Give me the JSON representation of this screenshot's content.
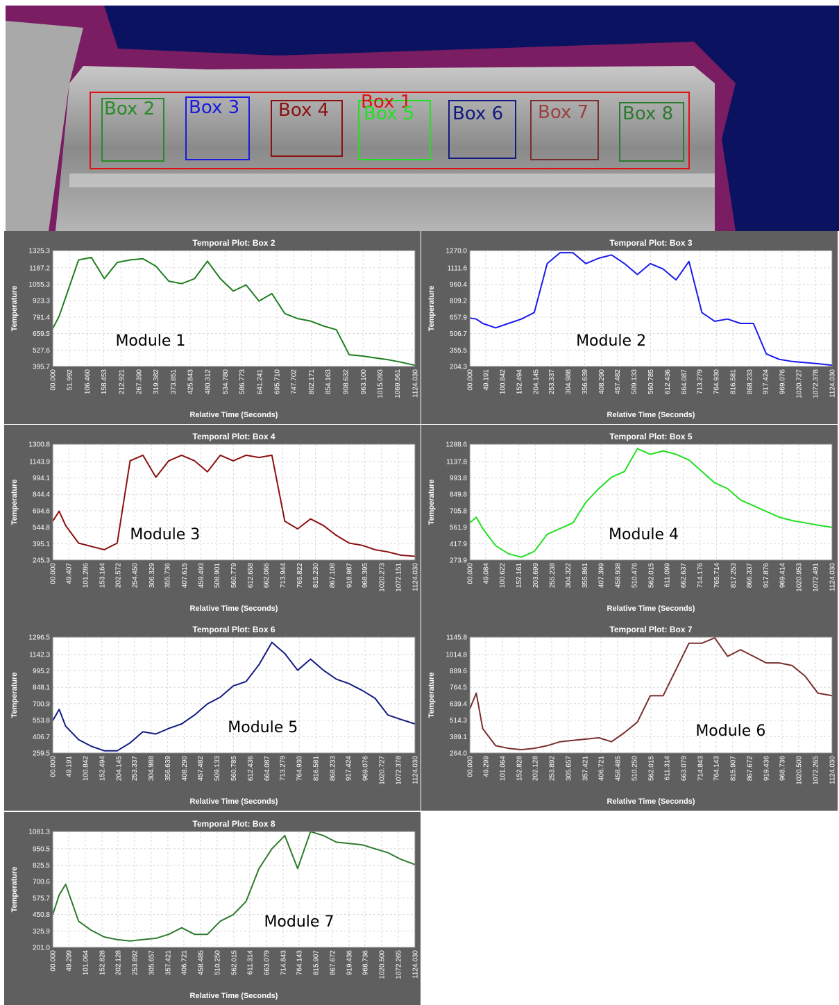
{
  "image": {
    "boxes": [
      {
        "label": "Box 1"
      },
      {
        "label": "Box 2"
      },
      {
        "label": "Box 3"
      },
      {
        "label": "Box 4"
      },
      {
        "label": "Box 5"
      },
      {
        "label": "Box 6"
      },
      {
        "label": "Box 7"
      },
      {
        "label": "Box 8"
      }
    ]
  },
  "chart_data": [
    {
      "type": "line",
      "title": "Temporal Plot: Box 2",
      "xlabel": "Relative Time (Seconds)",
      "ylabel": "Temperature",
      "annotation": "Module 1",
      "color": "#1e7e1e",
      "grid": true,
      "x": [
        0,
        20,
        40,
        80,
        120,
        160,
        200,
        240,
        280,
        320,
        360,
        400,
        440,
        480,
        520,
        560,
        600,
        640,
        680,
        720,
        760,
        800,
        840,
        880,
        920,
        960,
        1000,
        1040,
        1080,
        1124
      ],
      "values": [
        700,
        800,
        950,
        1250,
        1270,
        1100,
        1230,
        1250,
        1260,
        1200,
        1080,
        1060,
        1100,
        1240,
        1100,
        1000,
        1050,
        920,
        980,
        820,
        780,
        760,
        720,
        690,
        490,
        480,
        465,
        450,
        430,
        405
      ],
      "xlim": [
        0,
        1124.03
      ],
      "ylim": [
        395.7,
        1325.3
      ],
      "xticks": [
        {
          "value": 0,
          "label": "00.000"
        },
        51.992,
        {
          "value": 106.46,
          "label": "106.460"
        },
        158.453,
        212.921,
        {
          "value": 267.39,
          "label": "267.390"
        },
        319.382,
        373.851,
        425.843,
        480.312,
        {
          "value": 534.78,
          "label": "534.780"
        },
        586.773,
        641.241,
        {
          "value": 695.71,
          "label": "695.710"
        },
        747.702,
        802.171,
        854.163,
        908.632,
        {
          "value": 963.1,
          "label": "963.100"
        },
        1015.093,
        1069.561,
        {
          "value": 1124.03,
          "label": "1124.030"
        }
      ],
      "yticks": [
        395.7,
        527.6,
        659.5,
        791.4,
        923.3,
        1055.3,
        1187.2,
        1325.3
      ]
    },
    {
      "type": "line",
      "title": "Temporal Plot: Box 3",
      "xlabel": "Relative Time (Seconds)",
      "ylabel": "Temperature",
      "annotation": "Module 2",
      "color": "#1a1aee",
      "grid": true,
      "x": [
        0,
        20,
        40,
        80,
        120,
        160,
        200,
        240,
        280,
        320,
        360,
        400,
        440,
        480,
        520,
        560,
        600,
        640,
        680,
        720,
        760,
        800,
        840,
        880,
        920,
        960,
        1000,
        1040,
        1080,
        1124
      ],
      "values": [
        650,
        640,
        600,
        560,
        600,
        640,
        700,
        1150,
        1250,
        1250,
        1150,
        1200,
        1230,
        1150,
        1050,
        1150,
        1100,
        1000,
        1170,
        700,
        620,
        640,
        600,
        600,
        320,
        270,
        250,
        240,
        230,
        215
      ],
      "xlim": [
        0,
        1124.03
      ],
      "ylim": [
        204.3,
        1270.0
      ],
      "xticks": [
        {
          "value": 0,
          "label": "00.000"
        },
        49.191,
        100.842,
        152.494,
        204.145,
        253.337,
        304.988,
        356.639,
        {
          "value": 408.29,
          "label": "408.290"
        },
        457.482,
        509.133,
        560.785,
        612.436,
        664.087,
        713.279,
        {
          "value": 764.93,
          "label": "764.930"
        },
        816.581,
        868.233,
        917.424,
        969.076,
        1020.727,
        1072.378,
        {
          "value": 1124.03,
          "label": "1124.030"
        }
      ],
      "yticks": [
        204.3,
        355.5,
        506.7,
        657.9,
        809.2,
        960.4,
        1111.6,
        {
          "value": 1270,
          "label": "1270.0"
        }
      ]
    },
    {
      "type": "line",
      "title": "Temporal Plot: Box 4",
      "xlabel": "Relative Time (Seconds)",
      "ylabel": "Temperature",
      "annotation": "Module 3",
      "color": "#8b1010",
      "grid": true,
      "x": [
        0,
        20,
        40,
        80,
        120,
        160,
        200,
        240,
        280,
        320,
        360,
        400,
        440,
        480,
        520,
        560,
        600,
        640,
        680,
        720,
        760,
        800,
        840,
        880,
        920,
        960,
        1000,
        1040,
        1080,
        1124
      ],
      "values": [
        600,
        690,
        560,
        400,
        370,
        340,
        400,
        1150,
        1200,
        1000,
        1150,
        1200,
        1150,
        1050,
        1200,
        1150,
        1200,
        1180,
        1200,
        600,
        530,
        620,
        560,
        470,
        400,
        380,
        340,
        320,
        290,
        280
      ],
      "xlim": [
        0,
        1124.03
      ],
      "ylim": [
        245.3,
        1300.8
      ],
      "xticks": [
        {
          "value": 0,
          "label": "00.000"
        },
        49.407,
        101.286,
        153.164,
        202.572,
        {
          "value": 254.45,
          "label": "254.450"
        },
        306.329,
        355.736,
        407.615,
        459.493,
        508.901,
        560.779,
        612.658,
        662.066,
        713.944,
        765.822,
        {
          "value": 815.23,
          "label": "815.230"
        },
        867.108,
        918.987,
        968.395,
        1020.273,
        1072.151,
        {
          "value": 1124.03,
          "label": "1124.030"
        }
      ],
      "yticks": [
        245.3,
        395.1,
        544.8,
        694.6,
        844.4,
        994.1,
        1143.9,
        1300.8
      ]
    },
    {
      "type": "line",
      "title": "Temporal Plot: Box 5",
      "xlabel": "Relative Time (Seconds)",
      "ylabel": "Temperature",
      "annotation": "Module 4",
      "color": "#22e022",
      "grid": true,
      "x": [
        0,
        20,
        40,
        80,
        120,
        160,
        200,
        240,
        280,
        320,
        360,
        400,
        440,
        480,
        520,
        560,
        600,
        640,
        680,
        720,
        760,
        800,
        840,
        880,
        920,
        960,
        1000,
        1040,
        1080,
        1124
      ],
      "values": [
        600,
        650,
        550,
        400,
        330,
        300,
        350,
        500,
        550,
        600,
        780,
        900,
        1000,
        1050,
        1250,
        1200,
        1230,
        1200,
        1150,
        1050,
        950,
        900,
        800,
        750,
        700,
        650,
        620,
        600,
        580,
        560
      ],
      "xlim": [
        0,
        1124.03
      ],
      "ylim": [
        273.9,
        1288.6
      ],
      "xticks": [
        {
          "value": 0,
          "label": "00.000"
        },
        49.084,
        100.622,
        152.161,
        203.699,
        255.238,
        304.322,
        355.861,
        407.399,
        458.938,
        510.476,
        562.015,
        611.099,
        662.637,
        714.176,
        765.714,
        817.253,
        866.337,
        917.876,
        969.414,
        1020.953,
        1072.491,
        {
          "value": 1124.03,
          "label": "1124.030"
        }
      ],
      "yticks": [
        273.9,
        417.9,
        561.9,
        705.8,
        849.8,
        993.8,
        1137.8,
        1288.6
      ]
    },
    {
      "type": "line",
      "title": "Temporal Plot: Box 6",
      "xlabel": "Relative Time (Seconds)",
      "ylabel": "Temperature",
      "annotation": "Module 5",
      "color": "#121a80",
      "grid": true,
      "x": [
        0,
        20,
        40,
        80,
        120,
        160,
        200,
        240,
        280,
        320,
        360,
        400,
        440,
        480,
        520,
        560,
        600,
        640,
        680,
        720,
        760,
        800,
        840,
        880,
        920,
        960,
        1000,
        1040,
        1080,
        1124
      ],
      "values": [
        550,
        650,
        500,
        380,
        320,
        280,
        280,
        350,
        450,
        430,
        480,
        520,
        600,
        700,
        760,
        860,
        900,
        1050,
        1250,
        1150,
        1000,
        1100,
        1000,
        920,
        880,
        820,
        750,
        600,
        560,
        520
      ],
      "xlim": [
        0,
        1124.03
      ],
      "ylim": [
        259.5,
        1296.5
      ],
      "xticks": [
        {
          "value": 0,
          "label": "00.000"
        },
        49.191,
        100.842,
        152.494,
        204.145,
        253.337,
        304.988,
        356.639,
        {
          "value": 408.29,
          "label": "408.290"
        },
        457.482,
        509.133,
        560.785,
        612.436,
        664.087,
        713.279,
        {
          "value": 764.93,
          "label": "764.930"
        },
        816.581,
        868.233,
        917.424,
        969.076,
        1020.727,
        1072.378,
        {
          "value": 1124.03,
          "label": "1124.030"
        }
      ],
      "yticks": [
        259.5,
        406.7,
        553.8,
        700.9,
        848.1,
        995.2,
        1142.3,
        1296.5
      ]
    },
    {
      "type": "line",
      "title": "Temporal Plot: Box 7",
      "xlabel": "Relative Time (Seconds)",
      "ylabel": "Temperature",
      "annotation": "Module 6",
      "color": "#7a2e2e",
      "grid": true,
      "x": [
        0,
        20,
        40,
        80,
        120,
        160,
        200,
        240,
        280,
        320,
        360,
        400,
        440,
        480,
        520,
        560,
        600,
        640,
        680,
        720,
        760,
        800,
        840,
        880,
        920,
        960,
        1000,
        1040,
        1080,
        1124
      ],
      "values": [
        600,
        720,
        450,
        320,
        300,
        290,
        300,
        320,
        350,
        360,
        370,
        380,
        350,
        420,
        500,
        700,
        700,
        900,
        1100,
        1100,
        1140,
        1000,
        1050,
        1000,
        950,
        950,
        930,
        850,
        720,
        700
      ],
      "xlim": [
        0,
        1124.03
      ],
      "ylim": [
        264.0,
        1145.8
      ],
      "xticks": [
        {
          "value": 0,
          "label": "00.000"
        },
        49.299,
        101.064,
        152.828,
        202.128,
        253.892,
        305.657,
        357.421,
        406.721,
        458.485,
        {
          "value": 510.25,
          "label": "510.250"
        },
        562.015,
        611.314,
        663.079,
        714.843,
        764.143,
        815.907,
        867.672,
        919.436,
        968.736,
        {
          "value": 1020.5,
          "label": "1020.500"
        },
        1072.265,
        {
          "value": 1124.03,
          "label": "1124.030"
        }
      ],
      "yticks": [
        {
          "value": 264,
          "label": "264.0"
        },
        389.1,
        514.3,
        639.4,
        764.5,
        889.6,
        1014.8,
        1145.8
      ]
    },
    {
      "type": "line",
      "title": "Temporal Plot: Box 8",
      "xlabel": "Relative Time (Seconds)",
      "ylabel": "Temperature",
      "annotation": "Module 7",
      "color": "#2e7a2e",
      "grid": true,
      "x": [
        0,
        20,
        40,
        80,
        120,
        160,
        200,
        240,
        280,
        320,
        360,
        400,
        440,
        480,
        520,
        560,
        600,
        640,
        680,
        720,
        760,
        800,
        840,
        880,
        920,
        960,
        1000,
        1040,
        1080,
        1124
      ],
      "values": [
        450,
        600,
        680,
        400,
        330,
        280,
        260,
        250,
        260,
        270,
        300,
        350,
        300,
        300,
        400,
        450,
        550,
        800,
        950,
        1050,
        800,
        1080,
        1050,
        1000,
        990,
        980,
        950,
        920,
        870,
        830
      ],
      "xlim": [
        0,
        1124.03
      ],
      "ylim": [
        201.0,
        1081.3
      ],
      "xticks": [
        {
          "value": 0,
          "label": "00.000"
        },
        49.299,
        101.064,
        152.828,
        202.128,
        253.892,
        305.657,
        357.421,
        406.721,
        458.485,
        {
          "value": 510.25,
          "label": "510.250"
        },
        562.015,
        611.314,
        663.079,
        714.843,
        764.143,
        815.907,
        867.672,
        919.436,
        968.736,
        {
          "value": 1020.5,
          "label": "1020.500"
        },
        1072.265,
        {
          "value": 1124.03,
          "label": "1124.030"
        }
      ],
      "yticks": [
        {
          "value": 201,
          "label": "201.0"
        },
        325.9,
        450.8,
        575.7,
        700.6,
        825.5,
        950.5,
        1081.3
      ]
    }
  ]
}
